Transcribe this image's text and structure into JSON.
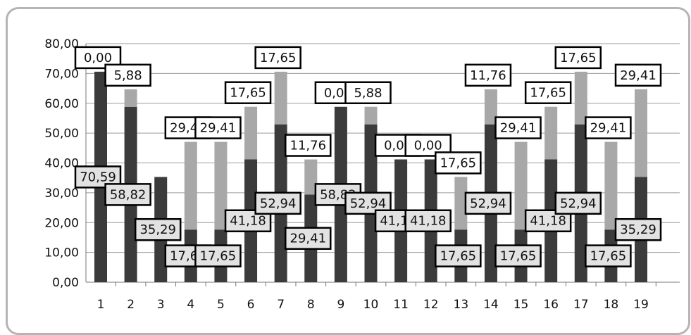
{
  "chart_data": {
    "type": "bar",
    "stacked": true,
    "categories": [
      "1",
      "2",
      "3",
      "4",
      "5",
      "6",
      "7",
      "8",
      "9",
      "10",
      "11",
      "12",
      "13",
      "14",
      "15",
      "16",
      "17",
      "18",
      "19"
    ],
    "series": [
      {
        "values": [
          70.59,
          58.82,
          35.29,
          17.65,
          17.65,
          41.18,
          52.94,
          29.41,
          58.82,
          52.94,
          41.18,
          41.18,
          17.65,
          52.94,
          17.65,
          41.18,
          52.94,
          17.65,
          35.29
        ],
        "color": "#3b3b3b"
      },
      {
        "values": [
          0.0,
          5.88,
          null,
          29.41,
          29.41,
          17.65,
          17.65,
          11.76,
          0.0,
          5.88,
          0.0,
          0.0,
          17.65,
          11.76,
          29.41,
          17.65,
          17.65,
          29.41,
          29.41
        ],
        "color": "#a8a8a8"
      }
    ],
    "series_labels": [
      [
        "70,59",
        "58,82",
        "35,29",
        "17,65",
        "17,65",
        "41,18",
        "52,94",
        "29,41",
        "58,82",
        "52,94",
        "41,18",
        "41,18",
        "17,65",
        "52,94",
        "17,65",
        "41,18",
        "52,94",
        "17,65",
        "35,29"
      ],
      [
        "0,00",
        "5,88",
        "",
        "29,41",
        "29,41",
        "17,65",
        "17,65",
        "11,76",
        "0,00",
        "5,88",
        "0,00",
        "0,00",
        "17,65",
        "11,76",
        "29,41",
        "17,65",
        "17,65",
        "29,41",
        "29,41"
      ]
    ],
    "yticks": [
      "0,00",
      "10,00",
      "20,00",
      "30,00",
      "40,00",
      "50,00",
      "60,00",
      "70,00",
      "80,00"
    ],
    "ylim": [
      0,
      80
    ],
    "grid": true,
    "legend": "none"
  }
}
